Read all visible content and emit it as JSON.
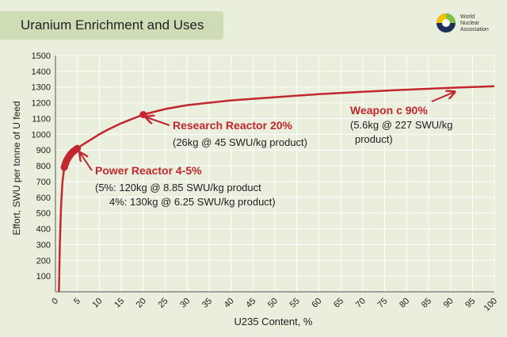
{
  "header": {
    "title": "Uranium Enrichment and Uses"
  },
  "logo": {
    "lines": [
      "World",
      "Nuclear",
      "Association"
    ],
    "name": "world-nuclear-association-logo"
  },
  "colors": {
    "background": "#e9eedd",
    "curve": "#c1272d",
    "grid": "#ffffff",
    "label": "#c1272d",
    "text": "#222222"
  },
  "chart_data": {
    "type": "line",
    "xlabel": "U235 Content, %",
    "ylabel": "Effort, SWU per tonne of U feed",
    "xlim": [
      0,
      100
    ],
    "ylim": [
      0,
      1500
    ],
    "xticks": [
      0,
      5,
      10,
      15,
      20,
      25,
      30,
      35,
      40,
      45,
      50,
      55,
      60,
      65,
      70,
      75,
      80,
      85,
      90,
      95,
      100
    ],
    "yticks": [
      100,
      200,
      300,
      400,
      500,
      600,
      700,
      800,
      900,
      1000,
      1100,
      1200,
      1300,
      1400,
      1500
    ],
    "grid": true,
    "series": [
      {
        "x": [
          0.8,
          1.0,
          1.3,
          1.6,
          2.0,
          2.5,
          3,
          3.5,
          4,
          5,
          6,
          8,
          10,
          12,
          15,
          20,
          25,
          30,
          40,
          50,
          60,
          70,
          80,
          90,
          100
        ],
        "y": [
          0,
          300,
          560,
          700,
          790,
          830,
          855,
          875,
          890,
          910,
          930,
          965,
          1000,
          1030,
          1070,
          1125,
          1160,
          1185,
          1215,
          1235,
          1255,
          1270,
          1283,
          1295,
          1305
        ]
      }
    ],
    "highlights": [
      {
        "x": 20,
        "y": 1125
      }
    ],
    "highlight_range": {
      "x": [
        2.0,
        5.0
      ]
    },
    "annotations": [
      {
        "title": "Research Reactor 20%",
        "lines": [
          "(26kg @ 45 SWU/kg product)"
        ],
        "arrow_target": [
          20,
          1125
        ]
      },
      {
        "title": "Power Reactor 4-5%",
        "lines": [
          "(5%: 120kg @ 8.85 SWU/kg product",
          "4%: 130kg @ 6.25 SWU/kg product)"
        ],
        "arrow_target": [
          5,
          900
        ]
      },
      {
        "title": "Weapon c 90%",
        "lines": [
          "(5.6kg @ 227 SWU/kg",
          "product)"
        ],
        "arrow_target": [
          91,
          1290
        ]
      }
    ]
  }
}
